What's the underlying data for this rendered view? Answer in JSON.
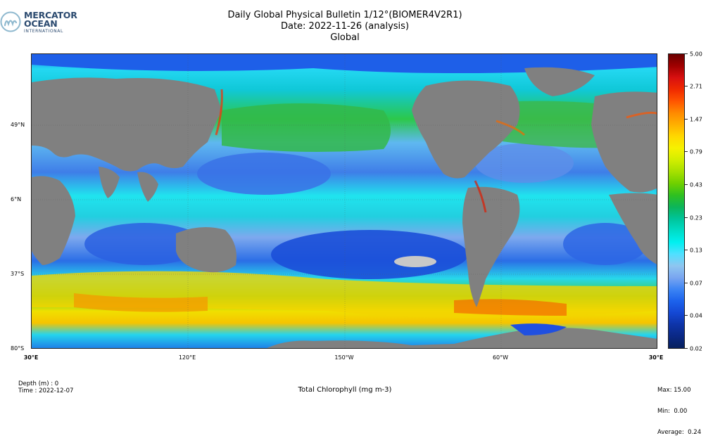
{
  "logo": {
    "line1": "MERCATOR",
    "line2": "OCEAN",
    "line3": "INTERNATIONAL"
  },
  "header": {
    "title_line1": "Daily Global Physical Bulletin 1/12°(BIOMER4V2R1)",
    "title_line2": "Date: 2022-11-26 (analysis)",
    "title_line3": "Global"
  },
  "map": {
    "land_color": "#808080",
    "lat_labels": [
      "49°N",
      "6°N",
      "37°S",
      "80°S"
    ],
    "lon_labels": [
      "30°E",
      "120°E",
      "150°W",
      "60°W",
      "30°E"
    ]
  },
  "colorbar": {
    "ticks": [
      "5.00",
      "2.71",
      "1.47",
      "0.79",
      "0.43",
      "0.23",
      "0.13",
      "0.07",
      "0.04",
      "0.02"
    ]
  },
  "footer": {
    "depth": "Depth (m) : 0",
    "time": "Time : 2022-12-07",
    "variable": "Total Chlorophyll (mg m-3)",
    "max": "Max: 15.00",
    "min": "Min:  0.00",
    "average": "Average:  0.24"
  }
}
